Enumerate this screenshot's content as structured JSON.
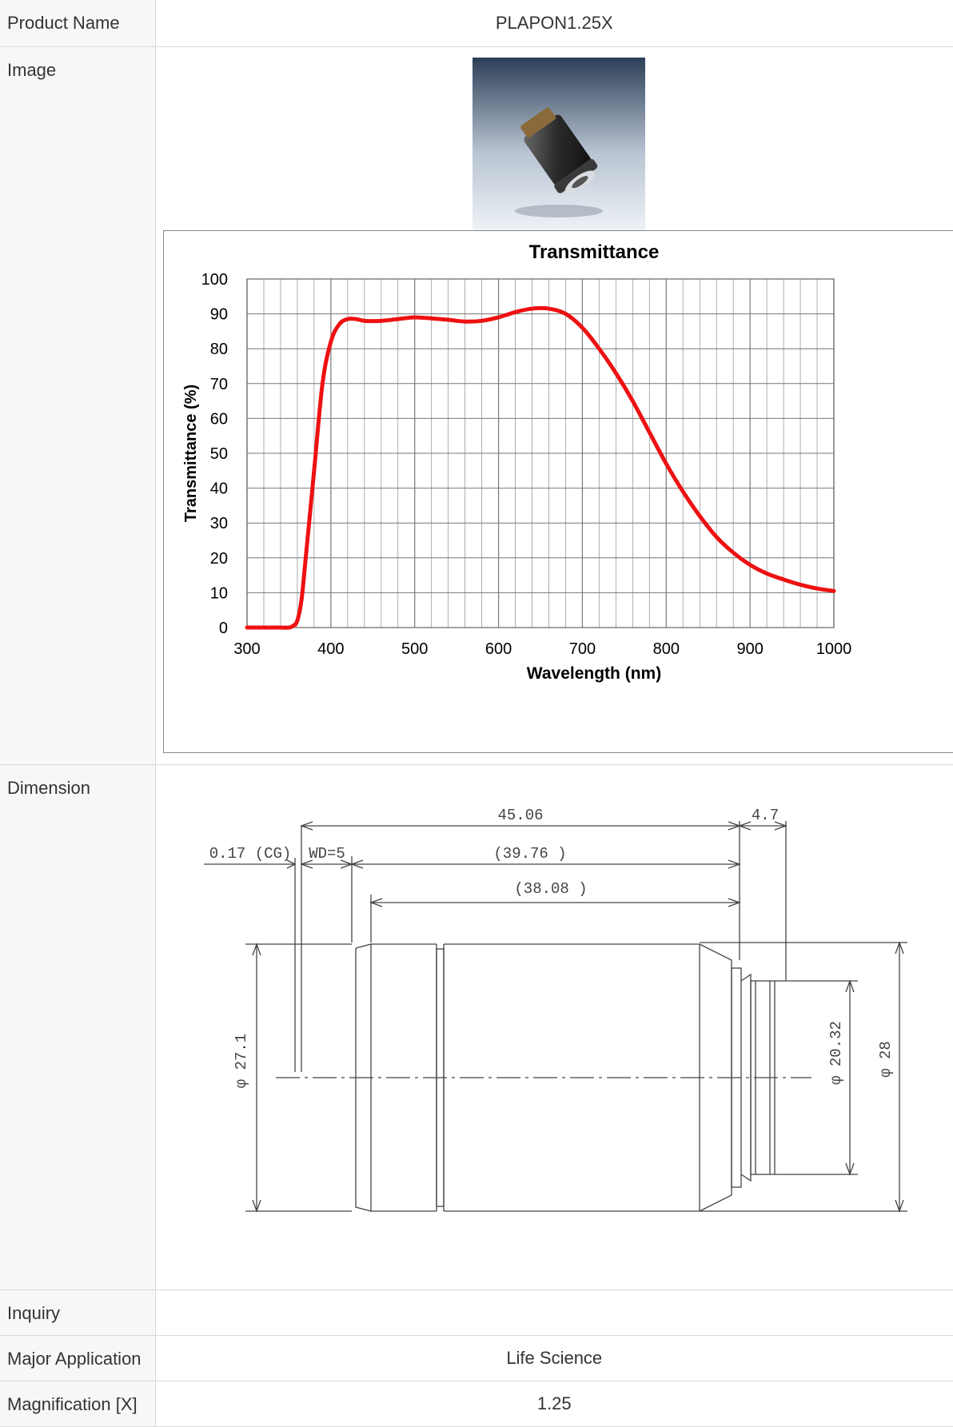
{
  "rows": {
    "product_name": {
      "label": "Product Name",
      "value": "PLAPON1.25X"
    },
    "image": {
      "label": "Image"
    },
    "dimension": {
      "label": "Dimension"
    },
    "inquiry": {
      "label": "Inquiry",
      "value": ""
    },
    "major_application": {
      "label": "Major Application",
      "value": "Life Science"
    },
    "magnification": {
      "label": "Magnification [X]",
      "value": "1.25"
    }
  },
  "chart_data": {
    "type": "line",
    "title": "Transmittance",
    "xlabel": "Wavelength (nm)",
    "ylabel": "Transmittance (%)",
    "xlim": [
      300,
      1000
    ],
    "ylim": [
      0,
      100
    ],
    "xticks": [
      300,
      400,
      500,
      600,
      700,
      800,
      900,
      1000
    ],
    "yticks": [
      0,
      10,
      20,
      30,
      40,
      50,
      60,
      70,
      80,
      90,
      100
    ],
    "grid": true,
    "color": "#ee1111",
    "series": [
      {
        "x": [
          300,
          340,
          350,
          355,
          360,
          365,
          370,
          380,
          390,
          400,
          410,
          420,
          430,
          440,
          460,
          480,
          500,
          520,
          540,
          560,
          580,
          600,
          620,
          640,
          660,
          680,
          700,
          720,
          740,
          760,
          780,
          800,
          820,
          840,
          860,
          880,
          900,
          920,
          940,
          960,
          980,
          1000
        ],
        "y": [
          0,
          0,
          0,
          0.5,
          2,
          8,
          20,
          45,
          70,
          82,
          87,
          88.5,
          88.5,
          88,
          88,
          88.5,
          89,
          88.7,
          88.3,
          87.8,
          88,
          89,
          90.5,
          91.5,
          91.5,
          90,
          86,
          80,
          73,
          65,
          56,
          47,
          39,
          32,
          26,
          21.5,
          18,
          15.5,
          13.8,
          12.3,
          11.2,
          10.5
        ]
      }
    ]
  },
  "dimension_drawing": {
    "overall_length": "45.06",
    "mount_length": "4.7",
    "cover_glass": "0.17 (CG)",
    "working_distance": "WD=5",
    "parfocal_length": "(39.76 )",
    "body_length": "(38.08 )",
    "body_diameter": "φ 27.1",
    "thread_diameter": "φ 20.32",
    "max_diameter": "φ 28"
  }
}
